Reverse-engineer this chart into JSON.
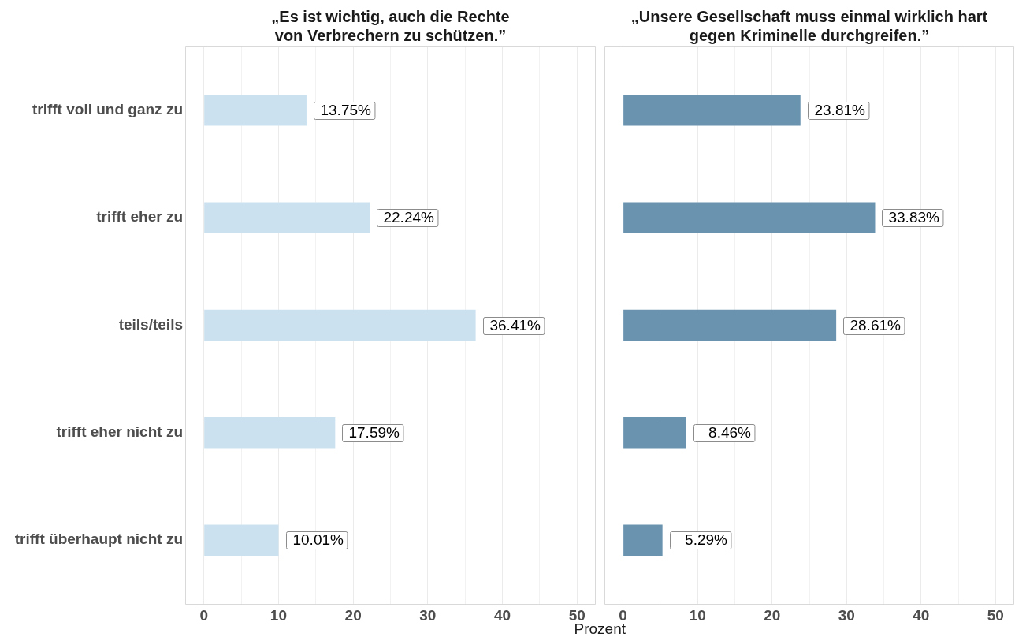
{
  "chart_data": [
    {
      "type": "bar",
      "orientation": "horizontal",
      "title": "„Es ist wichtig, auch die Rechte\nvon Verbrechern zu schützen.”",
      "xlabel": "Prozent",
      "categories": [
        "trifft voll und ganz zu",
        "trifft eher zu",
        "teils/teils",
        "trifft eher nicht zu",
        "trifft überhaupt nicht zu"
      ],
      "values": [
        13.75,
        22.24,
        36.41,
        17.59,
        10.01
      ],
      "color": "#cbe1f0",
      "value_labels": [
        "13.75%",
        "22.24%",
        "36.41%",
        "17.59%",
        "10.01%"
      ],
      "xlim": [
        -2.5,
        52.5
      ],
      "xticks": [
        0,
        {
          "value": 5,
          "label": null
        },
        10,
        {
          "value": 15,
          "label": null
        },
        20,
        {
          "value": 25,
          "label": null
        },
        30,
        {
          "value": 35,
          "label": null
        },
        40,
        {
          "value": 45,
          "label": null
        },
        50
      ],
      "grid": "x"
    },
    {
      "type": "bar",
      "orientation": "horizontal",
      "title": "„Unsere Gesellschaft muss einmal wirklich hart\ngegen Kriminelle durchgreifen.”",
      "categories": [
        null,
        null,
        null,
        null,
        null
      ],
      "values": [
        23.81,
        33.83,
        28.61,
        8.46,
        5.29
      ],
      "color": "#6a93b0",
      "value_labels": [
        "23.81%",
        "33.83%",
        "28.61%",
        "8.46%",
        "5.29%"
      ],
      "xlim": [
        -2.5,
        52.5
      ],
      "xticks": [
        0,
        {
          "value": 5,
          "label": null
        },
        10,
        {
          "value": 15,
          "label": null
        },
        20,
        {
          "value": 25,
          "label": null
        },
        30,
        {
          "value": 35,
          "label": null
        },
        40,
        {
          "value": 45,
          "label": null
        },
        50
      ],
      "grid": "x",
      "tick_labels": "x"
    }
  ]
}
